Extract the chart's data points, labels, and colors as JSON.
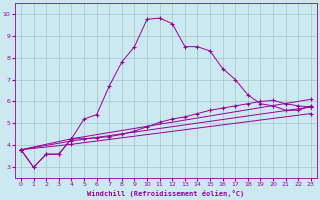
{
  "xlabel": "Windchill (Refroidissement éolien,°C)",
  "bg_color": "#cce8f0",
  "line_color": "#990099",
  "grid_color": "#aacccc",
  "xlim": [
    -0.5,
    23.5
  ],
  "ylim": [
    2.5,
    10.5
  ],
  "xticks": [
    0,
    1,
    2,
    3,
    4,
    5,
    6,
    7,
    8,
    9,
    10,
    11,
    12,
    13,
    14,
    15,
    16,
    17,
    18,
    19,
    20,
    21,
    22,
    23
  ],
  "yticks": [
    3,
    4,
    5,
    6,
    7,
    8,
    9,
    10
  ],
  "curve1_x": [
    0,
    1,
    2,
    3,
    4,
    5,
    6,
    7,
    8,
    9,
    10,
    11,
    12,
    13,
    14,
    15,
    16,
    17,
    18,
    19,
    20,
    21,
    22,
    23
  ],
  "curve1_y": [
    3.8,
    3.0,
    3.6,
    3.6,
    4.3,
    5.2,
    5.4,
    6.7,
    7.8,
    8.5,
    9.75,
    9.8,
    9.55,
    8.5,
    8.5,
    8.3,
    7.5,
    7.0,
    6.3,
    5.9,
    5.8,
    5.6,
    5.6,
    5.8
  ],
  "curve2_x": [
    0,
    1,
    2,
    3,
    4,
    5,
    6,
    7,
    8,
    9,
    10,
    11,
    12,
    13,
    14,
    15,
    16,
    17,
    18,
    19,
    20,
    21,
    22,
    23
  ],
  "curve2_y": [
    3.8,
    3.0,
    3.6,
    3.6,
    4.3,
    4.3,
    4.35,
    4.4,
    4.5,
    4.65,
    4.85,
    5.05,
    5.2,
    5.3,
    5.45,
    5.6,
    5.7,
    5.8,
    5.9,
    6.0,
    6.05,
    5.9,
    5.8,
    5.75
  ],
  "line1_x": [
    0,
    4,
    23
  ],
  "line1_y": [
    3.8,
    4.3,
    6.1
  ],
  "line2_x": [
    0,
    4,
    23
  ],
  "line2_y": [
    3.8,
    4.2,
    5.75
  ],
  "line3_x": [
    0,
    4,
    23
  ],
  "line3_y": [
    3.8,
    4.05,
    5.45
  ]
}
